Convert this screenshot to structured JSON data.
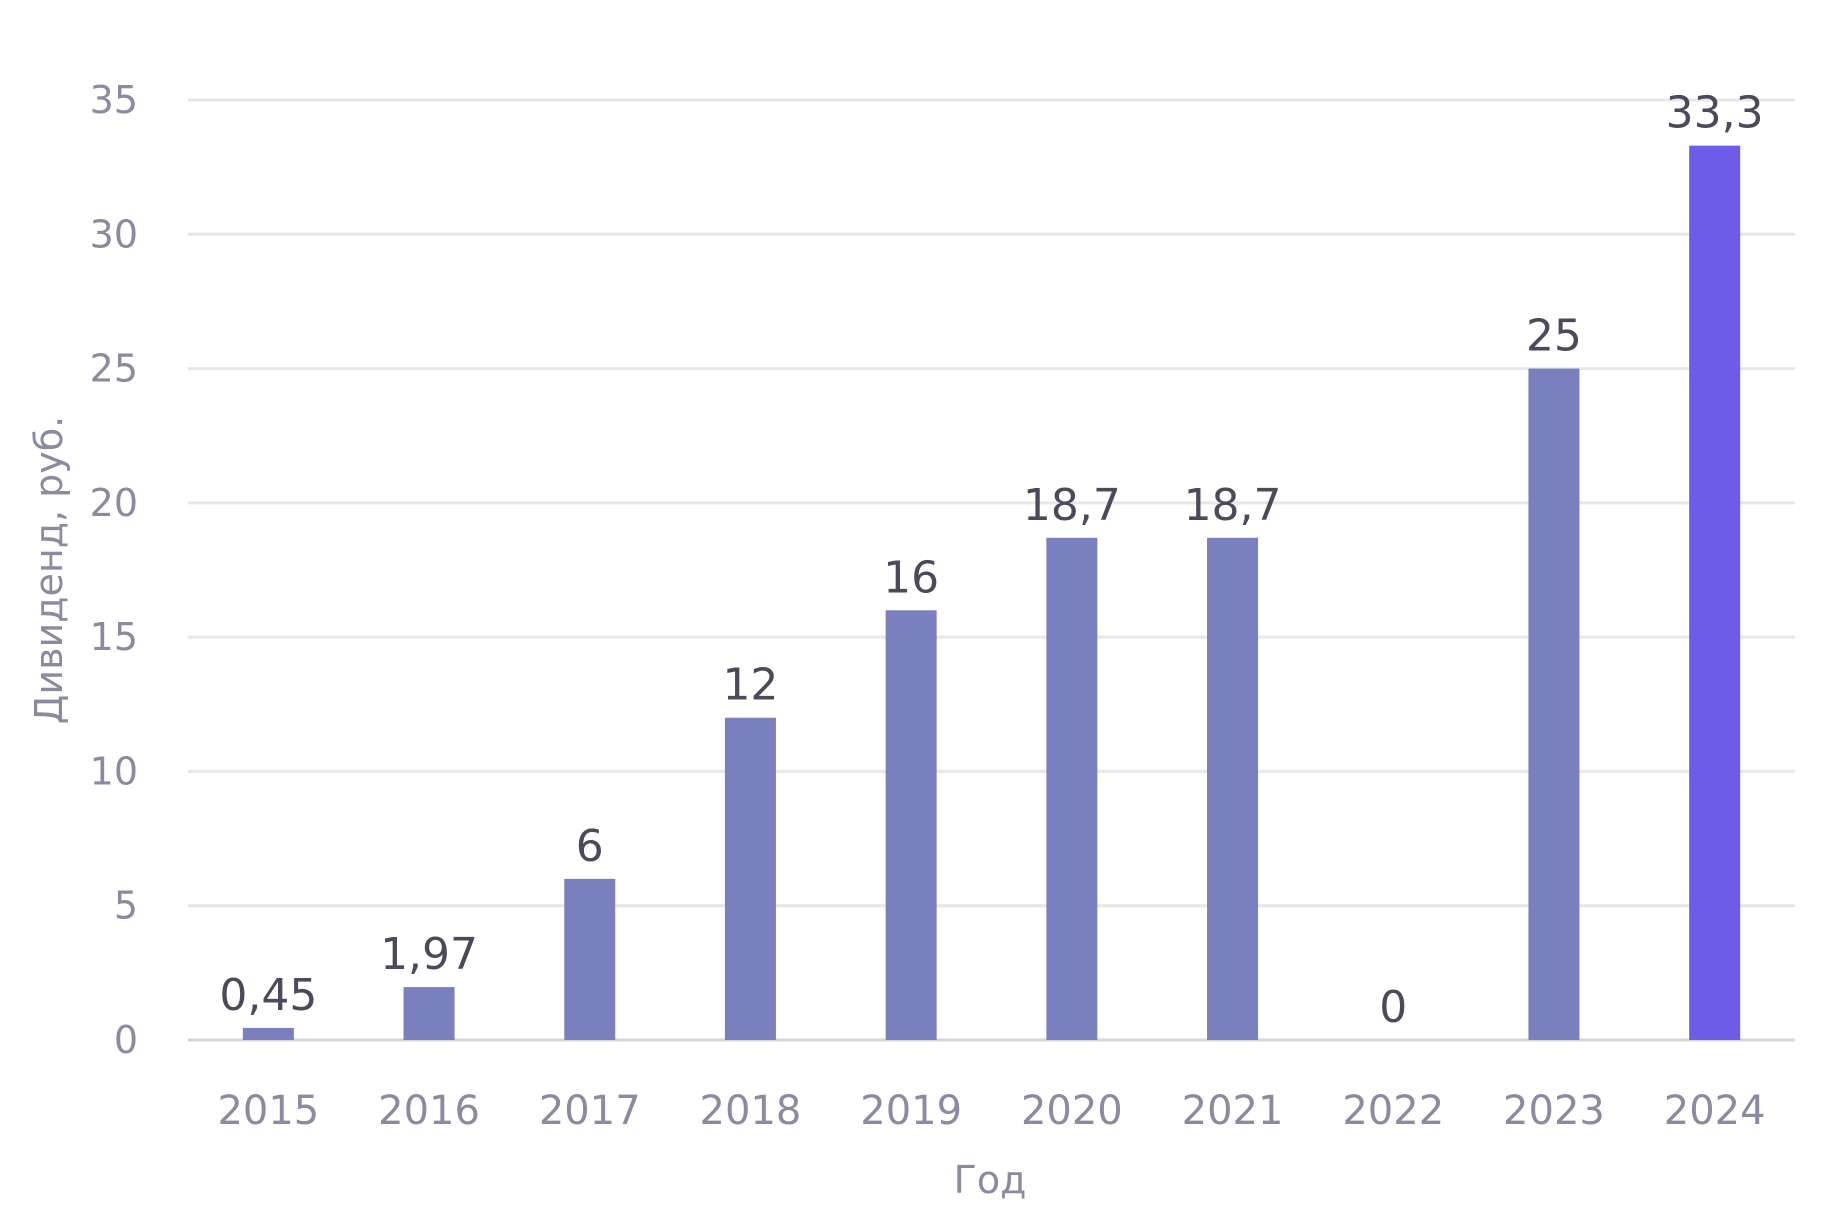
{
  "chart_data": {
    "type": "bar",
    "title": "",
    "xlabel": "Год",
    "ylabel": "Дивиденд, руб.",
    "categories": [
      "2015",
      "2016",
      "2017",
      "2018",
      "2019",
      "2020",
      "2021",
      "2022",
      "2023",
      "2024"
    ],
    "values": [
      0.45,
      1.97,
      6,
      12,
      16,
      18.7,
      18.7,
      0,
      25,
      33.3
    ],
    "data_labels": [
      "0,45",
      "1,97",
      "6",
      "12",
      "16",
      "18,7",
      "18,7",
      "0",
      "25",
      "33,3"
    ],
    "ylim": [
      0,
      35
    ],
    "yticks": [
      0,
      5,
      10,
      15,
      20,
      25,
      30,
      35
    ],
    "ytick_labels": [
      "0",
      "5",
      "10",
      "15",
      "20",
      "25",
      "30",
      "35"
    ],
    "grid": true,
    "legend": false,
    "colors": {
      "bar": "#7a80bd",
      "highlight_bar": "#6c5ce7",
      "highlight_category": "2024"
    }
  }
}
